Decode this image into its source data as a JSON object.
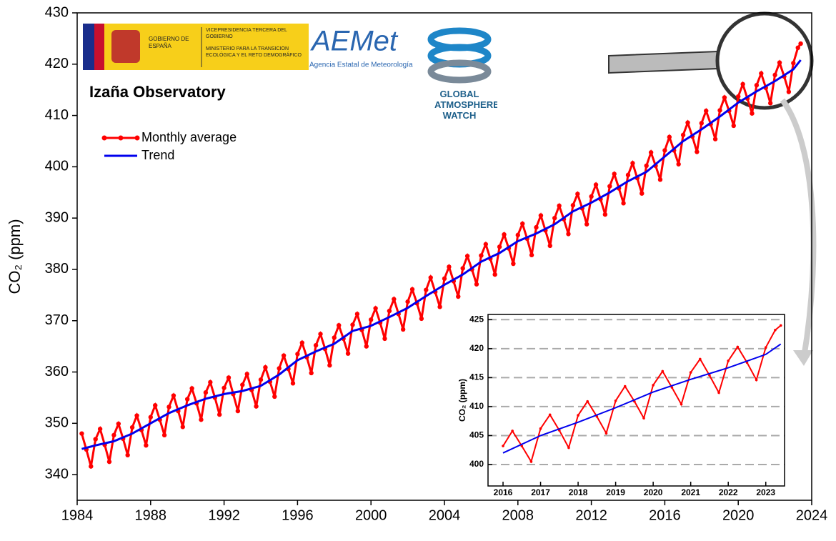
{
  "chart_data": [
    {
      "type": "line",
      "title": "Izaña Observatory",
      "y_label": "CO₂ (ppm)",
      "xlim": [
        1984,
        2024
      ],
      "xticks": [
        1984,
        1988,
        1992,
        1996,
        2000,
        2004,
        2008,
        2012,
        2016,
        2020,
        2024
      ],
      "ylim": [
        335,
        430
      ],
      "yticks": [
        340,
        350,
        360,
        370,
        380,
        390,
        400,
        410,
        420,
        430
      ],
      "legend": "top-left",
      "series": [
        {
          "name": "Monthly average",
          "color": "#ff0000",
          "marker": "circle",
          "x": [
            1984.25,
            1984.5,
            1984.75,
            1985,
            1985.25,
            1985.5,
            1985.75,
            1986,
            1986.25,
            1986.5,
            1986.75,
            1987,
            1987.25,
            1987.5,
            1987.75,
            1988,
            1988.25,
            1988.5,
            1988.75,
            1989,
            1989.25,
            1989.5,
            1989.75,
            1990,
            1990.25,
            1990.5,
            1990.75,
            1991,
            1991.25,
            1991.5,
            1991.75,
            1992,
            1992.25,
            1992.5,
            1992.75,
            1993,
            1993.25,
            1993.5,
            1993.75,
            1994,
            1994.25,
            1994.5,
            1994.75,
            1995,
            1995.25,
            1995.5,
            1995.75,
            1996,
            1996.25,
            1996.5,
            1996.75,
            1997,
            1997.25,
            1997.5,
            1997.75,
            1998,
            1998.25,
            1998.5,
            1998.75,
            1999,
            1999.25,
            1999.5,
            1999.75,
            2000,
            2000.25,
            2000.5,
            2000.75,
            2001,
            2001.25,
            2001.5,
            2001.75,
            2002,
            2002.25,
            2002.5,
            2002.75,
            2003,
            2003.25,
            2003.5,
            2003.75,
            2004,
            2004.25,
            2004.5,
            2004.75,
            2005,
            2005.25,
            2005.5,
            2005.75,
            2006,
            2006.25,
            2006.5,
            2006.75,
            2007,
            2007.25,
            2007.5,
            2007.75,
            2008,
            2008.25,
            2008.5,
            2008.75,
            2009,
            2009.25,
            2009.5,
            2009.75,
            2010,
            2010.25,
            2010.5,
            2010.75,
            2011,
            2011.25,
            2011.5,
            2011.75,
            2012,
            2012.25,
            2012.5,
            2012.75,
            2013,
            2013.25,
            2013.5,
            2013.75,
            2014,
            2014.25,
            2014.5,
            2014.75,
            2015,
            2015.25,
            2015.5,
            2015.75,
            2016,
            2016.25,
            2016.5,
            2016.75,
            2017,
            2017.25,
            2017.5,
            2017.75,
            2018,
            2018.25,
            2018.5,
            2018.75,
            2019,
            2019.25,
            2019.5,
            2019.75,
            2020,
            2020.25,
            2020.5,
            2020.75,
            2021,
            2021.25,
            2021.5,
            2021.75,
            2022,
            2022.25,
            2022.5,
            2022.75,
            2023,
            2023.25,
            2023.4
          ],
          "values": [
            348.0,
            344.9,
            341.6,
            346.9,
            348.9,
            345.8,
            342.5,
            347.7,
            349.9,
            347.0,
            343.8,
            349.2,
            351.5,
            348.7,
            345.7,
            351.2,
            353.5,
            350.7,
            347.7,
            353.2,
            355.4,
            352.4,
            349.3,
            354.7,
            356.8,
            353.9,
            350.7,
            356.0,
            358.0,
            355.0,
            351.7,
            356.9,
            358.9,
            355.7,
            352.4,
            357.5,
            359.6,
            356.5,
            353.3,
            358.5,
            360.9,
            358.1,
            355.2,
            360.7,
            363.2,
            360.6,
            357.8,
            363.5,
            365.7,
            362.9,
            359.8,
            365.2,
            367.4,
            364.5,
            361.3,
            366.7,
            369.1,
            366.5,
            363.6,
            369.2,
            371.3,
            368.2,
            365.0,
            370.2,
            372.4,
            369.6,
            366.5,
            371.9,
            374.2,
            371.3,
            368.3,
            373.7,
            376.1,
            373.4,
            370.4,
            376.0,
            378.4,
            375.6,
            372.7,
            378.2,
            380.5,
            377.7,
            374.7,
            380.2,
            382.6,
            380.0,
            377.1,
            382.7,
            384.9,
            382.1,
            379.0,
            384.4,
            386.8,
            384.1,
            381.1,
            386.7,
            388.9,
            386.0,
            382.8,
            388.2,
            390.5,
            387.6,
            384.6,
            390.0,
            392.4,
            389.8,
            386.9,
            392.5,
            394.7,
            391.9,
            388.8,
            394.2,
            396.5,
            393.7,
            390.7,
            396.2,
            398.6,
            395.8,
            392.9,
            398.4,
            400.7,
            397.8,
            394.8,
            400.2,
            402.8,
            400.2,
            397.5,
            403.2,
            405.8,
            403.2,
            400.5,
            406.2,
            408.6,
            405.9,
            402.9,
            408.5,
            410.9,
            408.3,
            405.4,
            411.0,
            413.5,
            410.9,
            408.0,
            413.7,
            416.1,
            413.3,
            410.4,
            415.9,
            418.2,
            415.4,
            412.4,
            417.9,
            420.3,
            417.6,
            414.6,
            420.2,
            423.2,
            424.0
          ]
        },
        {
          "name": "Trend",
          "color": "#0000ee",
          "x": [
            1984.25,
            1985,
            1986,
            1987,
            1988,
            1989,
            1990,
            1991,
            1992,
            1993,
            1994,
            1995,
            1996,
            1997,
            1998,
            1999,
            2000,
            2001,
            2002,
            2003,
            2004,
            2005,
            2006,
            2007,
            2008,
            2009,
            2010,
            2011,
            2012,
            2013,
            2014,
            2015,
            2016,
            2017,
            2018,
            2019,
            2020,
            2021,
            2022,
            2023,
            2023.4
          ],
          "values": [
            345.0,
            345.7,
            346.5,
            348.0,
            350.0,
            352.0,
            353.5,
            354.8,
            355.7,
            356.3,
            357.3,
            359.5,
            362.3,
            364.0,
            365.5,
            368.0,
            369.0,
            370.7,
            372.5,
            374.8,
            377.0,
            379.0,
            381.5,
            383.2,
            385.5,
            387.0,
            388.8,
            391.3,
            393.0,
            395.0,
            397.2,
            399.0,
            402.0,
            405.0,
            407.3,
            409.8,
            412.5,
            414.7,
            416.7,
            419.0,
            420.8
          ]
        }
      ]
    },
    {
      "type": "line",
      "y_label": "CO₂ (ppm)",
      "xlim": [
        2015.6,
        2023.5
      ],
      "xticks": [
        2016,
        2017,
        2018,
        2019,
        2020,
        2021,
        2022,
        2023
      ],
      "ylim": [
        396.3,
        425.9
      ],
      "yticks": [
        400,
        405,
        410,
        415,
        420,
        425
      ],
      "grid": true,
      "series": [
        {
          "name": "Monthly average",
          "color": "#ff0000",
          "x": [
            2016,
            2016.25,
            2016.5,
            2016.75,
            2017,
            2017.25,
            2017.5,
            2017.75,
            2018,
            2018.25,
            2018.5,
            2018.75,
            2019,
            2019.25,
            2019.5,
            2019.75,
            2020,
            2020.25,
            2020.5,
            2020.75,
            2021,
            2021.25,
            2021.5,
            2021.75,
            2022,
            2022.25,
            2022.5,
            2022.75,
            2023,
            2023.25,
            2023.4
          ],
          "values": [
            403.2,
            405.8,
            403.2,
            400.5,
            406.2,
            408.6,
            405.9,
            402.9,
            408.5,
            410.9,
            408.3,
            405.4,
            411.0,
            413.5,
            410.9,
            408.0,
            413.7,
            416.1,
            413.3,
            410.4,
            415.9,
            418.2,
            415.4,
            412.4,
            417.9,
            420.3,
            417.6,
            414.6,
            420.2,
            423.2,
            424.0
          ]
        },
        {
          "name": "Trend",
          "color": "#0000ee",
          "x": [
            2016,
            2017,
            2018,
            2019,
            2020,
            2021,
            2022,
            2023,
            2023.4
          ],
          "values": [
            402.0,
            405.0,
            407.3,
            409.8,
            412.5,
            414.7,
            416.7,
            419.0,
            420.8
          ]
        }
      ]
    }
  ],
  "logos": {
    "gobierno": "GOBIERNO DE ESPAÑA",
    "vice": "VICEPRESIDENCIA TERCERA DEL GOBIERNO",
    "ministerio": "MINISTERIO PARA LA TRANSICIÓN ECOLÓGICA Y EL RETO DEMOGRÁFICO",
    "aemet": "AEMet",
    "aemet_sub": "Agencia Estatal de Meteorología",
    "gaw": "GLOBAL ATMOSPHERE WATCH"
  }
}
